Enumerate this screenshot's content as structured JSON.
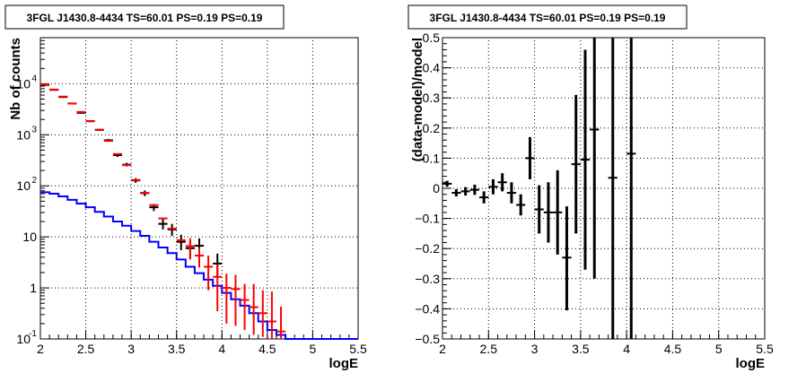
{
  "chart_data": [
    {
      "type": "line",
      "title": "3FGL J1430.8-4434 TS=60.01 PS=0.19 PS=0.19",
      "xlabel": "logE",
      "ylabel": "Nb of counts",
      "xlim": [
        2,
        5.5
      ],
      "ylim": [
        0.1,
        80000
      ],
      "yscale": "log",
      "grid": true,
      "x_ticks": [
        "2",
        "2.5",
        "3",
        "3.5",
        "4",
        "4.5",
        "5",
        "5.5"
      ],
      "y_ticks": [
        {
          "value": 0.1,
          "label": "10",
          "exp": "-1"
        },
        {
          "value": 1,
          "label": "1",
          "exp": ""
        },
        {
          "value": 10,
          "label": "10",
          "exp": ""
        },
        {
          "value": 100,
          "label": "10",
          "exp": "2"
        },
        {
          "value": 1000,
          "label": "10",
          "exp": "3"
        },
        {
          "value": 10000,
          "label": "10",
          "exp": "4"
        }
      ],
      "series": [
        {
          "kind": "data",
          "color": "#000000",
          "points": [
            {
              "x": 2.05,
              "y": 9500,
              "lo": 9300,
              "hi": 9700
            },
            {
              "x": 2.15,
              "y": 7600,
              "lo": 7400,
              "hi": 7800
            },
            {
              "x": 2.25,
              "y": 5500,
              "lo": 5350,
              "hi": 5650
            },
            {
              "x": 2.35,
              "y": 4100,
              "lo": 3980,
              "hi": 4220
            },
            {
              "x": 2.45,
              "y": 2700,
              "lo": 2600,
              "hi": 2800
            },
            {
              "x": 2.55,
              "y": 1850,
              "lo": 1770,
              "hi": 1930
            },
            {
              "x": 2.65,
              "y": 1250,
              "lo": 1190,
              "hi": 1310
            },
            {
              "x": 2.75,
              "y": 780,
              "lo": 735,
              "hi": 825
            },
            {
              "x": 2.85,
              "y": 400,
              "lo": 370,
              "hi": 430
            },
            {
              "x": 2.95,
              "y": 260,
              "lo": 240,
              "hi": 282
            },
            {
              "x": 3.05,
              "y": 128,
              "lo": 115,
              "hi": 141
            },
            {
              "x": 3.15,
              "y": 72,
              "lo": 63,
              "hi": 81
            },
            {
              "x": 3.25,
              "y": 38,
              "lo": 32,
              "hi": 44
            },
            {
              "x": 3.35,
              "y": 18,
              "lo": 14,
              "hi": 22.5
            },
            {
              "x": 3.45,
              "y": 14,
              "lo": 10.5,
              "hi": 18
            },
            {
              "x": 3.55,
              "y": 8,
              "lo": 5.5,
              "hi": 11
            },
            {
              "x": 3.65,
              "y": 6,
              "lo": 3.8,
              "hi": 8.5
            },
            {
              "x": 3.75,
              "y": 6.7,
              "lo": 4.3,
              "hi": 9.3
            },
            {
              "x": 3.95,
              "y": 3,
              "lo": 1.6,
              "hi": 4.7
            }
          ]
        },
        {
          "kind": "model",
          "color": "#ff0000",
          "points": [
            {
              "x": 2.05,
              "y": 9700
            },
            {
              "x": 2.15,
              "y": 7700
            },
            {
              "x": 2.25,
              "y": 5600
            },
            {
              "x": 2.35,
              "y": 4100
            },
            {
              "x": 2.45,
              "y": 2800
            },
            {
              "x": 2.55,
              "y": 1850
            },
            {
              "x": 2.65,
              "y": 1250
            },
            {
              "x": 2.75,
              "y": 760
            },
            {
              "x": 2.85,
              "y": 420
            },
            {
              "x": 2.95,
              "y": 255
            },
            {
              "x": 3.05,
              "y": 130
            },
            {
              "x": 3.15,
              "y": 73
            },
            {
              "x": 3.25,
              "y": 42
            },
            {
              "x": 3.35,
              "y": 23
            },
            {
              "x": 3.45,
              "y": 14.5
            },
            {
              "x": 3.55,
              "y": 8.6
            },
            {
              "x": 3.65,
              "y": 6.6,
              "lo": 3.6,
              "hi": 9.4
            },
            {
              "x": 3.75,
              "y": 4.3,
              "lo": 2.5,
              "hi": 6.2
            },
            {
              "x": 3.85,
              "y": 2.6,
              "lo": 0.9,
              "hi": 4.3
            },
            {
              "x": 3.95,
              "y": 1.65,
              "lo": 0.35,
              "hi": 2.9
            },
            {
              "x": 4.05,
              "y": 1,
              "lo": 0.2,
              "hi": 1.9
            },
            {
              "x": 4.15,
              "y": 0.95,
              "lo": 0.18,
              "hi": 1.8
            },
            {
              "x": 4.25,
              "y": 0.58,
              "lo": 0.15,
              "hi": 1.2
            },
            {
              "x": 4.35,
              "y": 0.42,
              "lo": 0.12,
              "hi": 1.2
            },
            {
              "x": 4.45,
              "y": 0.32,
              "lo": 0.11,
              "hi": 0.9
            },
            {
              "x": 4.55,
              "y": 0.22,
              "lo": 0.1,
              "hi": 0.85
            },
            {
              "x": 4.65,
              "y": 0.14,
              "lo": 0.1,
              "hi": 0.43
            }
          ]
        },
        {
          "kind": "step",
          "color": "#0000ff",
          "edges": [
            2.0,
            2.1,
            2.2,
            2.3,
            2.4,
            2.5,
            2.6,
            2.7,
            2.8,
            2.9,
            3.0,
            3.1,
            3.2,
            3.3,
            3.4,
            3.5,
            3.6,
            3.7,
            3.8,
            3.9,
            4.0,
            4.1,
            4.2,
            4.3,
            4.4,
            4.5,
            4.6,
            4.7,
            5.5
          ],
          "values": [
            75,
            70,
            62,
            53,
            45,
            38,
            31,
            25,
            20,
            16.5,
            13,
            10.5,
            8,
            6.2,
            4.8,
            3.6,
            2.6,
            1.95,
            1.45,
            1.1,
            0.8,
            0.6,
            0.45,
            0.32,
            0.22,
            0.15,
            0.12,
            0.1
          ]
        }
      ]
    },
    {
      "type": "scatter",
      "title": "3FGL J1430.8-4434 TS=60.01 PS=0.19 PS=0.19",
      "xlabel": "logE",
      "ylabel": "(data-model)/model",
      "xlim": [
        2,
        5.5
      ],
      "ylim": [
        -0.5,
        0.5
      ],
      "grid": true,
      "x_ticks": [
        "2",
        "2.5",
        "3",
        "3.5",
        "4",
        "4.5",
        "5",
        "5.5"
      ],
      "y_ticks": [
        "−0.5",
        "−0.4",
        "−0.3",
        "−0.2",
        "−0.1",
        "0",
        "0.1",
        "0.2",
        "0.3",
        "0.4",
        "0.5"
      ],
      "series": [
        {
          "kind": "residual",
          "color": "#000000",
          "points": [
            {
              "x": 2.05,
              "y": 0.015,
              "lo": 0.005,
              "hi": 0.025
            },
            {
              "x": 2.15,
              "y": -0.015,
              "lo": -0.027,
              "hi": -0.003
            },
            {
              "x": 2.25,
              "y": -0.01,
              "lo": -0.024,
              "hi": 0.004
            },
            {
              "x": 2.35,
              "y": -0.005,
              "lo": -0.022,
              "hi": 0.012
            },
            {
              "x": 2.45,
              "y": -0.03,
              "lo": -0.05,
              "hi": -0.01
            },
            {
              "x": 2.55,
              "y": 0.005,
              "lo": -0.02,
              "hi": 0.03
            },
            {
              "x": 2.65,
              "y": 0.02,
              "lo": -0.01,
              "hi": 0.05
            },
            {
              "x": 2.75,
              "y": -0.015,
              "lo": -0.05,
              "hi": 0.02
            },
            {
              "x": 2.85,
              "y": -0.055,
              "lo": -0.09,
              "hi": -0.02
            },
            {
              "x": 2.95,
              "y": 0.1,
              "lo": 0.03,
              "hi": 0.17
            },
            {
              "x": 3.05,
              "y": -0.07,
              "lo": -0.15,
              "hi": 0.01
            },
            {
              "x": 3.15,
              "y": -0.08,
              "lo": -0.18,
              "hi": 0.02
            },
            {
              "x": 3.25,
              "y": -0.08,
              "lo": -0.22,
              "hi": 0.06
            },
            {
              "x": 3.35,
              "y": -0.23,
              "lo": -0.405,
              "hi": -0.06
            },
            {
              "x": 3.45,
              "y": 0.08,
              "lo": -0.15,
              "hi": 0.31
            },
            {
              "x": 3.55,
              "y": 0.095,
              "lo": -0.27,
              "hi": 0.46
            },
            {
              "x": 3.65,
              "y": 0.195,
              "lo": -0.3,
              "hi": 0.5
            },
            {
              "x": 3.85,
              "y": 0.035,
              "lo": -0.5,
              "hi": 0.5
            },
            {
              "x": 4.05,
              "y": 0.115,
              "lo": -0.5,
              "hi": 0.5
            }
          ]
        }
      ]
    }
  ]
}
